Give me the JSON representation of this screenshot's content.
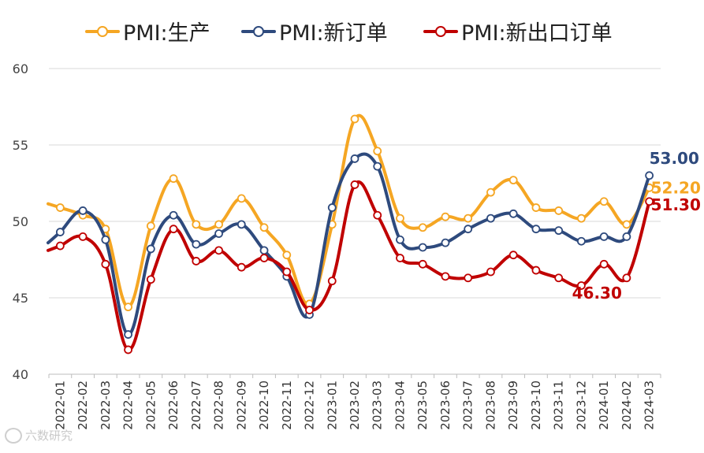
{
  "chart_data": {
    "type": "line",
    "categories": [
      "2022-01",
      "2022-02",
      "2022-03",
      "2022-04",
      "2022-05",
      "2022-06",
      "2022-07",
      "2022-08",
      "2022-09",
      "2022-10",
      "2022-11",
      "2022-12",
      "2023-01",
      "2023-02",
      "2023-03",
      "2023-04",
      "2023-05",
      "2023-06",
      "2023-07",
      "2023-08",
      "2023-09",
      "2023-10",
      "2023-11",
      "2023-12",
      "2024-01",
      "2024-02",
      "2024-03"
    ],
    "series": [
      {
        "name": "PMI:生产",
        "color": "#F5A623",
        "values": [
          50.9,
          50.4,
          49.5,
          44.4,
          49.7,
          52.8,
          49.8,
          49.8,
          51.5,
          49.6,
          47.8,
          44.6,
          49.8,
          56.7,
          54.6,
          50.2,
          49.6,
          50.3,
          50.2,
          51.9,
          52.7,
          50.9,
          50.7,
          50.2,
          51.3,
          49.8,
          52.2
        ]
      },
      {
        "name": "PMI:新订单",
        "color": "#2E4A7D",
        "values": [
          49.3,
          50.7,
          48.8,
          42.6,
          48.2,
          50.4,
          48.5,
          49.2,
          49.8,
          48.1,
          46.4,
          43.9,
          50.9,
          54.1,
          53.6,
          48.8,
          48.3,
          48.6,
          49.5,
          50.2,
          50.5,
          49.5,
          49.4,
          48.7,
          49.0,
          49.0,
          53.0
        ]
      },
      {
        "name": "PMI:新出口订单",
        "color": "#C00000",
        "values": [
          48.4,
          49.0,
          47.2,
          41.6,
          46.2,
          49.5,
          47.4,
          48.1,
          47.0,
          47.6,
          46.7,
          44.2,
          46.1,
          52.4,
          50.4,
          47.6,
          47.2,
          46.4,
          46.3,
          46.7,
          47.8,
          46.8,
          46.3,
          45.8,
          47.2,
          46.3,
          51.3
        ]
      }
    ],
    "ylim": [
      40,
      60
    ],
    "yticks": [
      "40",
      "45",
      "50",
      "55",
      "60"
    ],
    "grid": true,
    "legend_position": "top",
    "callouts": [
      {
        "series": "PMI:新订单",
        "category": "2024-03",
        "text": "53.00"
      },
      {
        "series": "PMI:生产",
        "category": "2024-03",
        "text": "52.20"
      },
      {
        "series": "PMI:新出口订单",
        "category": "2024-03",
        "text": "51.30"
      },
      {
        "series": "PMI:新出口订单",
        "category": "2024-02",
        "text": "46.30"
      }
    ]
  },
  "watermark": {
    "icon": "watermark-logo-icon",
    "text": "六数研究"
  }
}
